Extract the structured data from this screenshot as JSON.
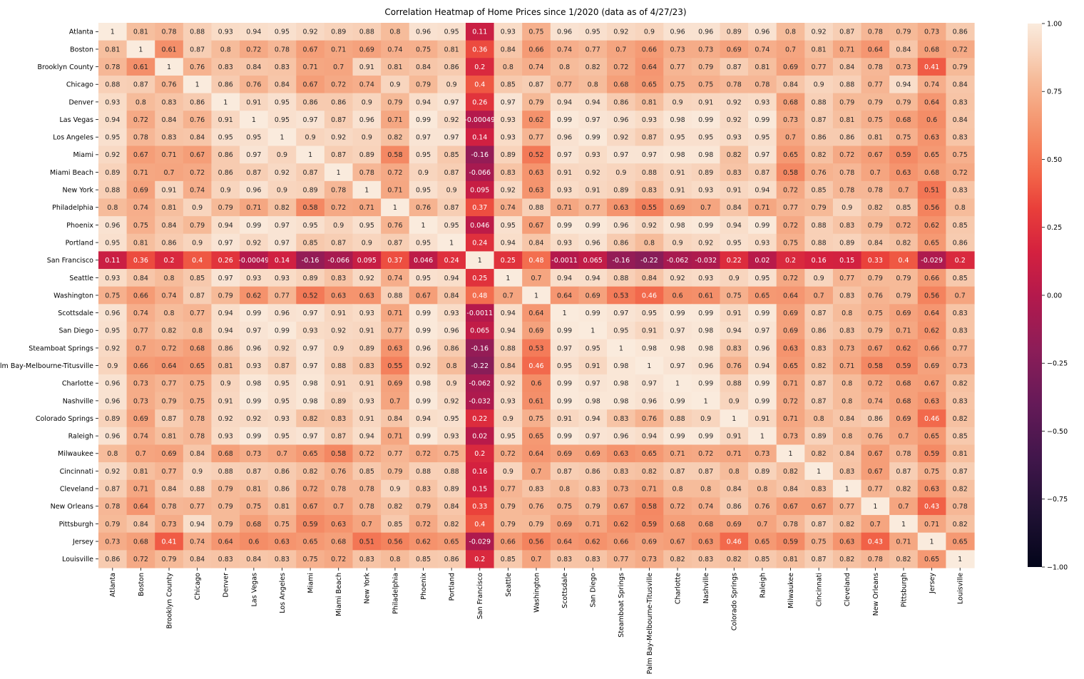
{
  "chart_data": {
    "type": "heatmap",
    "title": "Correlation Heatmap of Home Prices since 1/2020 (data as of 4/27/23)",
    "rows": [
      "Atlanta",
      "Boston",
      "Brooklyn County",
      "Chicago",
      "Denver",
      "Las Vegas",
      "Los Angeles",
      "Miami",
      "Miami Beach",
      "New York",
      "Philadelphia",
      "Phoenix",
      "Portland",
      "San Francisco",
      "Seattle",
      "Washington",
      "Scottsdale",
      "San Diego",
      "Steamboat Springs",
      "Palm Bay-Melbourne-Titusville",
      "Charlotte",
      "Nashville",
      "Colorado Springs",
      "Raleigh",
      "Milwaukee",
      "Cincinnati",
      "Cleveland",
      "New Orleans",
      "Pittsburgh",
      "Jersey",
      "Louisville"
    ],
    "columns": [
      "Atlanta",
      "Boston",
      "Brooklyn County",
      "Chicago",
      "Denver",
      "Las Vegas",
      "Los Angeles",
      "Miami",
      "Miami Beach",
      "New York",
      "Philadelphia",
      "Phoenix",
      "Portland",
      "San Francisco",
      "Seattle",
      "Washington",
      "Scottsdale",
      "San Diego",
      "Steamboat Springs",
      "Palm Bay-Melbourne-Titusville",
      "Charlotte",
      "Nashville",
      "Colorado Springs",
      "Raleigh",
      "Milwaukee",
      "Cincinnati",
      "Cleveland",
      "New Orleans",
      "Pittsburgh",
      "Jersey",
      "Louisville"
    ],
    "values": [
      [
        "1",
        "0.81",
        "0.78",
        "0.88",
        "0.93",
        "0.94",
        "0.95",
        "0.92",
        "0.89",
        "0.88",
        "0.8",
        "0.96",
        "0.95",
        "0.11",
        "0.93",
        "0.75",
        "0.96",
        "0.95",
        "0.92",
        "0.9",
        "0.96",
        "0.96",
        "0.89",
        "0.96",
        "0.8",
        "0.92",
        "0.87",
        "0.78",
        "0.79",
        "0.73",
        "0.86"
      ],
      [
        "0.81",
        "1",
        "0.61",
        "0.87",
        "0.8",
        "0.72",
        "0.78",
        "0.67",
        "0.71",
        "0.69",
        "0.74",
        "0.75",
        "0.81",
        "0.36",
        "0.84",
        "0.66",
        "0.74",
        "0.77",
        "0.7",
        "0.66",
        "0.73",
        "0.73",
        "0.69",
        "0.74",
        "0.7",
        "0.81",
        "0.71",
        "0.64",
        "0.84",
        "0.68",
        "0.72"
      ],
      [
        "0.78",
        "0.61",
        "1",
        "0.76",
        "0.83",
        "0.84",
        "0.83",
        "0.71",
        "0.7",
        "0.91",
        "0.81",
        "0.84",
        "0.86",
        "0.2",
        "0.8",
        "0.74",
        "0.8",
        "0.82",
        "0.72",
        "0.64",
        "0.77",
        "0.79",
        "0.87",
        "0.81",
        "0.69",
        "0.77",
        "0.84",
        "0.78",
        "0.73",
        "0.41",
        "0.79"
      ],
      [
        "0.88",
        "0.87",
        "0.76",
        "1",
        "0.86",
        "0.76",
        "0.84",
        "0.67",
        "0.72",
        "0.74",
        "0.9",
        "0.79",
        "0.9",
        "0.4",
        "0.85",
        "0.87",
        "0.77",
        "0.8",
        "0.68",
        "0.65",
        "0.75",
        "0.75",
        "0.78",
        "0.78",
        "0.84",
        "0.9",
        "0.88",
        "0.77",
        "0.94",
        "0.74",
        "0.84"
      ],
      [
        "0.93",
        "0.8",
        "0.83",
        "0.86",
        "1",
        "0.91",
        "0.95",
        "0.86",
        "0.86",
        "0.9",
        "0.79",
        "0.94",
        "0.97",
        "0.26",
        "0.97",
        "0.79",
        "0.94",
        "0.94",
        "0.86",
        "0.81",
        "0.9",
        "0.91",
        "0.92",
        "0.93",
        "0.68",
        "0.88",
        "0.79",
        "0.79",
        "0.79",
        "0.64",
        "0.83"
      ],
      [
        "0.94",
        "0.72",
        "0.84",
        "0.76",
        "0.91",
        "1",
        "0.95",
        "0.97",
        "0.87",
        "0.96",
        "0.71",
        "0.99",
        "0.92",
        "-0.00049",
        "0.93",
        "0.62",
        "0.99",
        "0.97",
        "0.96",
        "0.93",
        "0.98",
        "0.99",
        "0.92",
        "0.99",
        "0.73",
        "0.87",
        "0.81",
        "0.75",
        "0.68",
        "0.6",
        "0.84"
      ],
      [
        "0.95",
        "0.78",
        "0.83",
        "0.84",
        "0.95",
        "0.95",
        "1",
        "0.9",
        "0.92",
        "0.9",
        "0.82",
        "0.97",
        "0.97",
        "0.14",
        "0.93",
        "0.77",
        "0.96",
        "0.99",
        "0.92",
        "0.87",
        "0.95",
        "0.95",
        "0.93",
        "0.95",
        "0.7",
        "0.86",
        "0.86",
        "0.81",
        "0.75",
        "0.63",
        "0.83"
      ],
      [
        "0.92",
        "0.67",
        "0.71",
        "0.67",
        "0.86",
        "0.97",
        "0.9",
        "1",
        "0.87",
        "0.89",
        "0.58",
        "0.95",
        "0.85",
        "-0.16",
        "0.89",
        "0.52",
        "0.97",
        "0.93",
        "0.97",
        "0.97",
        "0.98",
        "0.98",
        "0.82",
        "0.97",
        "0.65",
        "0.82",
        "0.72",
        "0.67",
        "0.59",
        "0.65",
        "0.75"
      ],
      [
        "0.89",
        "0.71",
        "0.7",
        "0.72",
        "0.86",
        "0.87",
        "0.92",
        "0.87",
        "1",
        "0.78",
        "0.72",
        "0.9",
        "0.87",
        "-0.066",
        "0.83",
        "0.63",
        "0.91",
        "0.92",
        "0.9",
        "0.88",
        "0.91",
        "0.89",
        "0.83",
        "0.87",
        "0.58",
        "0.76",
        "0.78",
        "0.7",
        "0.63",
        "0.68",
        "0.72"
      ],
      [
        "0.88",
        "0.69",
        "0.91",
        "0.74",
        "0.9",
        "0.96",
        "0.9",
        "0.89",
        "0.78",
        "1",
        "0.71",
        "0.95",
        "0.9",
        "0.095",
        "0.92",
        "0.63",
        "0.93",
        "0.91",
        "0.89",
        "0.83",
        "0.91",
        "0.93",
        "0.91",
        "0.94",
        "0.72",
        "0.85",
        "0.78",
        "0.78",
        "0.7",
        "0.51",
        "0.83"
      ],
      [
        "0.8",
        "0.74",
        "0.81",
        "0.9",
        "0.79",
        "0.71",
        "0.82",
        "0.58",
        "0.72",
        "0.71",
        "1",
        "0.76",
        "0.87",
        "0.37",
        "0.74",
        "0.88",
        "0.71",
        "0.77",
        "0.63",
        "0.55",
        "0.69",
        "0.7",
        "0.84",
        "0.71",
        "0.77",
        "0.79",
        "0.9",
        "0.82",
        "0.85",
        "0.56",
        "0.8"
      ],
      [
        "0.96",
        "0.75",
        "0.84",
        "0.79",
        "0.94",
        "0.99",
        "0.97",
        "0.95",
        "0.9",
        "0.95",
        "0.76",
        "1",
        "0.95",
        "0.046",
        "0.95",
        "0.67",
        "0.99",
        "0.99",
        "0.96",
        "0.92",
        "0.98",
        "0.99",
        "0.94",
        "0.99",
        "0.72",
        "0.88",
        "0.83",
        "0.79",
        "0.72",
        "0.62",
        "0.85"
      ],
      [
        "0.95",
        "0.81",
        "0.86",
        "0.9",
        "0.97",
        "0.92",
        "0.97",
        "0.85",
        "0.87",
        "0.9",
        "0.87",
        "0.95",
        "1",
        "0.24",
        "0.94",
        "0.84",
        "0.93",
        "0.96",
        "0.86",
        "0.8",
        "0.9",
        "0.92",
        "0.95",
        "0.93",
        "0.75",
        "0.88",
        "0.89",
        "0.84",
        "0.82",
        "0.65",
        "0.86"
      ],
      [
        "0.11",
        "0.36",
        "0.2",
        "0.4",
        "0.26",
        "-0.00049",
        "0.14",
        "-0.16",
        "-0.066",
        "0.095",
        "0.37",
        "0.046",
        "0.24",
        "1",
        "0.25",
        "0.48",
        "-0.0011",
        "0.065",
        "-0.16",
        "-0.22",
        "-0.062",
        "-0.032",
        "0.22",
        "0.02",
        "0.2",
        "0.16",
        "0.15",
        "0.33",
        "0.4",
        "-0.029",
        "0.2"
      ],
      [
        "0.93",
        "0.84",
        "0.8",
        "0.85",
        "0.97",
        "0.93",
        "0.93",
        "0.89",
        "0.83",
        "0.92",
        "0.74",
        "0.95",
        "0.94",
        "0.25",
        "1",
        "0.7",
        "0.94",
        "0.94",
        "0.88",
        "0.84",
        "0.92",
        "0.93",
        "0.9",
        "0.95",
        "0.72",
        "0.9",
        "0.77",
        "0.79",
        "0.79",
        "0.66",
        "0.85"
      ],
      [
        "0.75",
        "0.66",
        "0.74",
        "0.87",
        "0.79",
        "0.62",
        "0.77",
        "0.52",
        "0.63",
        "0.63",
        "0.88",
        "0.67",
        "0.84",
        "0.48",
        "0.7",
        "1",
        "0.64",
        "0.69",
        "0.53",
        "0.46",
        "0.6",
        "0.61",
        "0.75",
        "0.65",
        "0.64",
        "0.7",
        "0.83",
        "0.76",
        "0.79",
        "0.56",
        "0.7"
      ],
      [
        "0.96",
        "0.74",
        "0.8",
        "0.77",
        "0.94",
        "0.99",
        "0.96",
        "0.97",
        "0.91",
        "0.93",
        "0.71",
        "0.99",
        "0.93",
        "-0.0011",
        "0.94",
        "0.64",
        "1",
        "0.99",
        "0.97",
        "0.95",
        "0.99",
        "0.99",
        "0.91",
        "0.99",
        "0.69",
        "0.87",
        "0.8",
        "0.75",
        "0.69",
        "0.64",
        "0.83"
      ],
      [
        "0.95",
        "0.77",
        "0.82",
        "0.8",
        "0.94",
        "0.97",
        "0.99",
        "0.93",
        "0.92",
        "0.91",
        "0.77",
        "0.99",
        "0.96",
        "0.065",
        "0.94",
        "0.69",
        "0.99",
        "1",
        "0.95",
        "0.91",
        "0.97",
        "0.98",
        "0.94",
        "0.97",
        "0.69",
        "0.86",
        "0.83",
        "0.79",
        "0.71",
        "0.62",
        "0.83"
      ],
      [
        "0.92",
        "0.7",
        "0.72",
        "0.68",
        "0.86",
        "0.96",
        "0.92",
        "0.97",
        "0.9",
        "0.89",
        "0.63",
        "0.96",
        "0.86",
        "-0.16",
        "0.88",
        "0.53",
        "0.97",
        "0.95",
        "1",
        "0.98",
        "0.98",
        "0.98",
        "0.83",
        "0.96",
        "0.63",
        "0.83",
        "0.73",
        "0.67",
        "0.62",
        "0.66",
        "0.77"
      ],
      [
        "0.9",
        "0.66",
        "0.64",
        "0.65",
        "0.81",
        "0.93",
        "0.87",
        "0.97",
        "0.88",
        "0.83",
        "0.55",
        "0.92",
        "0.8",
        "-0.22",
        "0.84",
        "0.46",
        "0.95",
        "0.91",
        "0.98",
        "1",
        "0.97",
        "0.96",
        "0.76",
        "0.94",
        "0.65",
        "0.82",
        "0.71",
        "0.58",
        "0.59",
        "0.69",
        "0.73"
      ],
      [
        "0.96",
        "0.73",
        "0.77",
        "0.75",
        "0.9",
        "0.98",
        "0.95",
        "0.98",
        "0.91",
        "0.91",
        "0.69",
        "0.98",
        "0.9",
        "-0.062",
        "0.92",
        "0.6",
        "0.99",
        "0.97",
        "0.98",
        "0.97",
        "1",
        "0.99",
        "0.88",
        "0.99",
        "0.71",
        "0.87",
        "0.8",
        "0.72",
        "0.68",
        "0.67",
        "0.82"
      ],
      [
        "0.96",
        "0.73",
        "0.79",
        "0.75",
        "0.91",
        "0.99",
        "0.95",
        "0.98",
        "0.89",
        "0.93",
        "0.7",
        "0.99",
        "0.92",
        "-0.032",
        "0.93",
        "0.61",
        "0.99",
        "0.98",
        "0.98",
        "0.96",
        "0.99",
        "1",
        "0.9",
        "0.99",
        "0.72",
        "0.87",
        "0.8",
        "0.74",
        "0.68",
        "0.63",
        "0.83"
      ],
      [
        "0.89",
        "0.69",
        "0.87",
        "0.78",
        "0.92",
        "0.92",
        "0.93",
        "0.82",
        "0.83",
        "0.91",
        "0.84",
        "0.94",
        "0.95",
        "0.22",
        "0.9",
        "0.75",
        "0.91",
        "0.94",
        "0.83",
        "0.76",
        "0.88",
        "0.9",
        "1",
        "0.91",
        "0.71",
        "0.8",
        "0.84",
        "0.86",
        "0.69",
        "0.46",
        "0.82"
      ],
      [
        "0.96",
        "0.74",
        "0.81",
        "0.78",
        "0.93",
        "0.99",
        "0.95",
        "0.97",
        "0.87",
        "0.94",
        "0.71",
        "0.99",
        "0.93",
        "0.02",
        "0.95",
        "0.65",
        "0.99",
        "0.97",
        "0.96",
        "0.94",
        "0.99",
        "0.99",
        "0.91",
        "1",
        "0.73",
        "0.89",
        "0.8",
        "0.76",
        "0.7",
        "0.65",
        "0.85"
      ],
      [
        "0.8",
        "0.7",
        "0.69",
        "0.84",
        "0.68",
        "0.73",
        "0.7",
        "0.65",
        "0.58",
        "0.72",
        "0.77",
        "0.72",
        "0.75",
        "0.2",
        "0.72",
        "0.64",
        "0.69",
        "0.69",
        "0.63",
        "0.65",
        "0.71",
        "0.72",
        "0.71",
        "0.73",
        "1",
        "0.82",
        "0.84",
        "0.67",
        "0.78",
        "0.59",
        "0.81"
      ],
      [
        "0.92",
        "0.81",
        "0.77",
        "0.9",
        "0.88",
        "0.87",
        "0.86",
        "0.82",
        "0.76",
        "0.85",
        "0.79",
        "0.88",
        "0.88",
        "0.16",
        "0.9",
        "0.7",
        "0.87",
        "0.86",
        "0.83",
        "0.82",
        "0.87",
        "0.87",
        "0.8",
        "0.89",
        "0.82",
        "1",
        "0.83",
        "0.67",
        "0.87",
        "0.75",
        "0.87"
      ],
      [
        "0.87",
        "0.71",
        "0.84",
        "0.88",
        "0.79",
        "0.81",
        "0.86",
        "0.72",
        "0.78",
        "0.78",
        "0.9",
        "0.83",
        "0.89",
        "0.15",
        "0.77",
        "0.83",
        "0.8",
        "0.83",
        "0.73",
        "0.71",
        "0.8",
        "0.8",
        "0.84",
        "0.8",
        "0.84",
        "0.83",
        "1",
        "0.77",
        "0.82",
        "0.63",
        "0.82"
      ],
      [
        "0.78",
        "0.64",
        "0.78",
        "0.77",
        "0.79",
        "0.75",
        "0.81",
        "0.67",
        "0.7",
        "0.78",
        "0.82",
        "0.79",
        "0.84",
        "0.33",
        "0.79",
        "0.76",
        "0.75",
        "0.79",
        "0.67",
        "0.58",
        "0.72",
        "0.74",
        "0.86",
        "0.76",
        "0.67",
        "0.67",
        "0.77",
        "1",
        "0.7",
        "0.43",
        "0.78"
      ],
      [
        "0.79",
        "0.84",
        "0.73",
        "0.94",
        "0.79",
        "0.68",
        "0.75",
        "0.59",
        "0.63",
        "0.7",
        "0.85",
        "0.72",
        "0.82",
        "0.4",
        "0.79",
        "0.79",
        "0.69",
        "0.71",
        "0.62",
        "0.59",
        "0.68",
        "0.68",
        "0.69",
        "0.7",
        "0.78",
        "0.87",
        "0.82",
        "0.7",
        "1",
        "0.71",
        "0.82"
      ],
      [
        "0.73",
        "0.68",
        "0.41",
        "0.74",
        "0.64",
        "0.6",
        "0.63",
        "0.65",
        "0.68",
        "0.51",
        "0.56",
        "0.62",
        "0.65",
        "-0.029",
        "0.66",
        "0.56",
        "0.64",
        "0.62",
        "0.66",
        "0.69",
        "0.67",
        "0.63",
        "0.46",
        "0.65",
        "0.59",
        "0.75",
        "0.63",
        "0.43",
        "0.71",
        "1",
        "0.65"
      ],
      [
        "0.86",
        "0.72",
        "0.79",
        "0.84",
        "0.83",
        "0.84",
        "0.83",
        "0.75",
        "0.72",
        "0.83",
        "0.8",
        "0.85",
        "0.86",
        "0.2",
        "0.85",
        "0.7",
        "0.83",
        "0.83",
        "0.77",
        "0.73",
        "0.82",
        "0.83",
        "0.82",
        "0.85",
        "0.81",
        "0.87",
        "0.82",
        "0.78",
        "0.82",
        "0.65",
        "1"
      ]
    ],
    "colorbar": {
      "range": [
        -1,
        1
      ],
      "ticks": [
        "1.00",
        "0.75",
        "0.50",
        "0.25",
        "0.00",
        "−0.25",
        "−0.50",
        "−0.75",
        "−1.00"
      ],
      "colormap": "rocket"
    }
  }
}
